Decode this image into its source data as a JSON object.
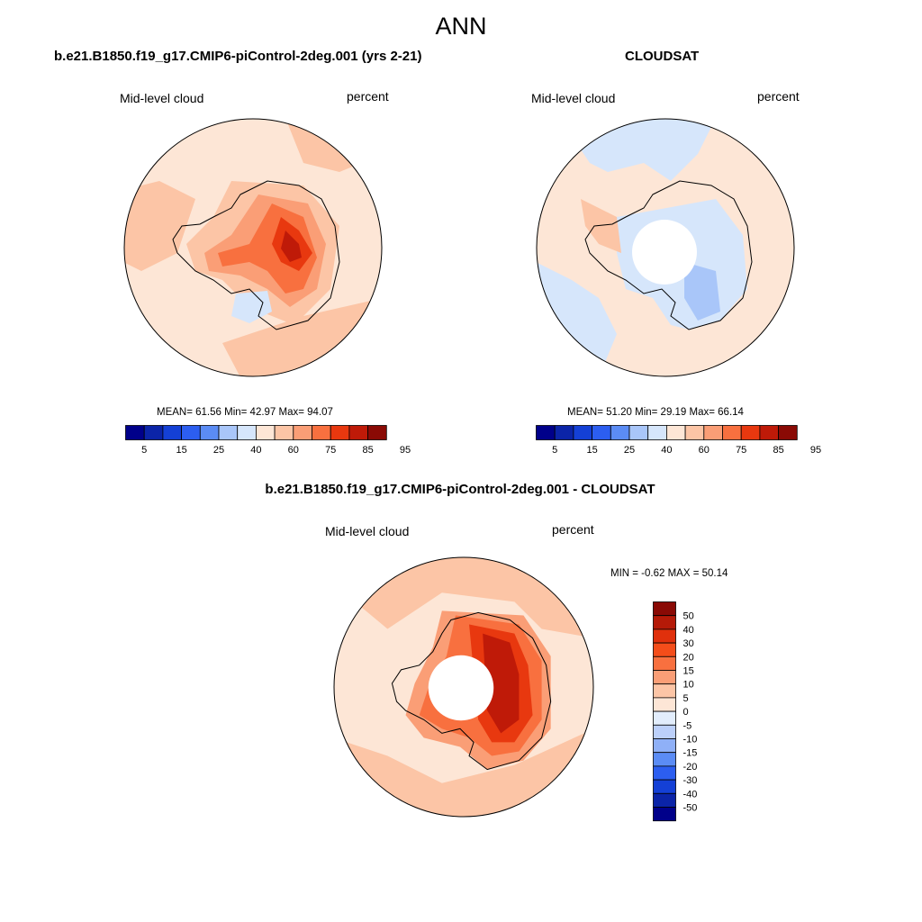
{
  "page_title": "ANN",
  "panels": [
    {
      "title": "b.e21.B1850.f19_g17.CMIP6-piControl-2deg.001 (yrs 2-21)",
      "left_label": "Mid-level cloud",
      "right_label": "percent",
      "stats": "MEAN=  61.56  Min=  42.97  Max=  94.07"
    },
    {
      "title": "CLOUDSAT",
      "left_label": "Mid-level cloud",
      "right_label": "percent",
      "stats": "MEAN=  51.20  Min=  29.19  Max=  66.14"
    },
    {
      "title": "b.e21.B1850.f19_g17.CMIP6-piControl-2deg.001 - CLOUDSAT",
      "left_label": "Mid-level cloud",
      "right_label": "percent",
      "stats": "MIN =  -0.62 MAX =  50.14"
    }
  ],
  "colorbar_abs": {
    "colors": [
      "#00008a",
      "#0b24a8",
      "#1440d6",
      "#2c5ef0",
      "#5b8cf5",
      "#a9c6f9",
      "#d6e6fb",
      "#fde6d6",
      "#fcc5a6",
      "#fa9e76",
      "#f8703f",
      "#e8380f",
      "#bf1a08",
      "#8a0a05"
    ],
    "labels": [
      "5",
      "15",
      "25",
      "40",
      "60",
      "75",
      "85",
      "95"
    ]
  },
  "colorbar_diff": {
    "colors": [
      "#00008a",
      "#0b24a8",
      "#1440d6",
      "#2c5ef0",
      "#5b8cf5",
      "#8fb0f7",
      "#bcd0fa",
      "#e2edfc",
      "#fde6d6",
      "#fcc5a6",
      "#fa9e76",
      "#f8703f",
      "#f44d1a",
      "#e0300c",
      "#b51a08",
      "#8a0a05"
    ],
    "labels": [
      "50",
      "40",
      "30",
      "20",
      "15",
      "10",
      "5",
      "0",
      "-5",
      "-10",
      "-15",
      "-20",
      "-30",
      "-40",
      "-50"
    ]
  }
}
